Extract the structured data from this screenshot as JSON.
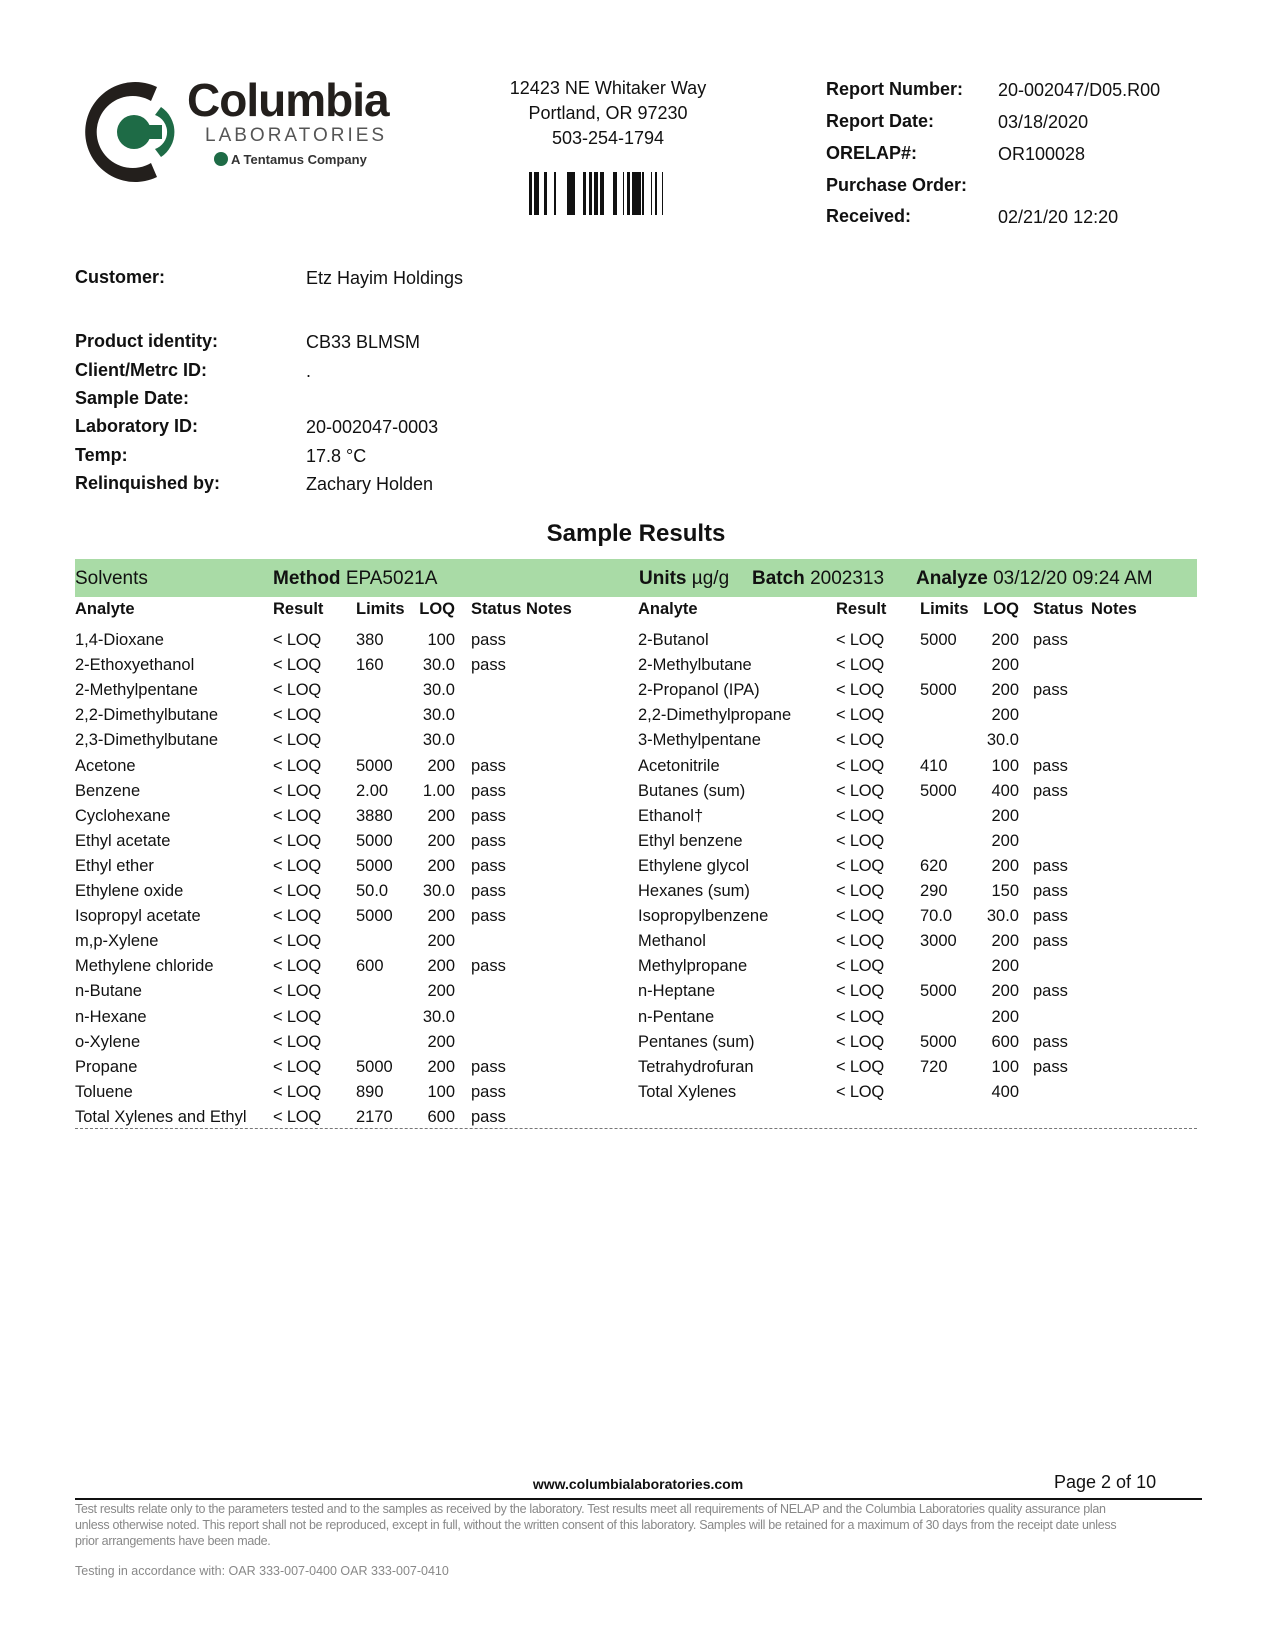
{
  "logo": {
    "name": "Columbia",
    "sub": "LABORATORIES",
    "tagline": "A Tentamus Company",
    "green": "#1e6b46",
    "dark": "#231f1c"
  },
  "address": {
    "line1": "12423 NE Whitaker Way",
    "line2": "Portland, OR 97230",
    "phone": "503-254-1794"
  },
  "report": [
    {
      "label": "Report Number:",
      "value": "20-002047/D05.R00"
    },
    {
      "label": "Report Date:",
      "value": "03/18/2020"
    },
    {
      "label": "ORELAP#:",
      "value": "OR100028"
    },
    {
      "label": "Purchase Order:",
      "value": ""
    },
    {
      "label": "Received:",
      "value": "02/21/20  12:20"
    }
  ],
  "customer": {
    "label": "Customer:",
    "value": "Etz Hayim Holdings"
  },
  "sample": [
    {
      "label": "Product identity:",
      "value": "CB33 BLMSM"
    },
    {
      "label": "Client/Metrc ID:",
      "value": "."
    },
    {
      "label": "Sample Date:",
      "value": ""
    },
    {
      "label": "Laboratory ID:",
      "value": "20-002047-0003"
    },
    {
      "label": "Temp:",
      "value": "17.8 °C"
    },
    {
      "label": "Relinquished by:",
      "value": "Zachary Holden"
    }
  ],
  "results_title": "Sample Results",
  "section": {
    "name": "Solvents",
    "method_label": "Method",
    "method": "EPA5021A",
    "units_label": "Units",
    "units": "µg/g",
    "batch_label": "Batch",
    "batch": "2002313",
    "analyze_label": "Analyze",
    "analyze": "03/12/20  09:24 AM",
    "color": "#a9dba6"
  },
  "columns": [
    "Analyte",
    "Result",
    "Limits",
    "LOQ",
    "Status",
    "Notes"
  ],
  "left_rows": [
    [
      "1,4-Dioxane",
      "< LOQ",
      "380",
      "100",
      "pass"
    ],
    [
      "2-Ethoxyethanol",
      "< LOQ",
      "160",
      "30.0",
      "pass"
    ],
    [
      "2-Methylpentane",
      "< LOQ",
      "",
      "30.0",
      ""
    ],
    [
      "2,2-Dimethylbutane",
      "< LOQ",
      "",
      "30.0",
      ""
    ],
    [
      "2,3-Dimethylbutane",
      "< LOQ",
      "",
      "30.0",
      ""
    ],
    [
      "Acetone",
      "< LOQ",
      "5000",
      "200",
      "pass"
    ],
    [
      "Benzene",
      "< LOQ",
      "2.00",
      "1.00",
      "pass"
    ],
    [
      "Cyclohexane",
      "< LOQ",
      "3880",
      "200",
      "pass"
    ],
    [
      "Ethyl acetate",
      "< LOQ",
      "5000",
      "200",
      "pass"
    ],
    [
      "Ethyl ether",
      "< LOQ",
      "5000",
      "200",
      "pass"
    ],
    [
      "Ethylene oxide",
      "< LOQ",
      "50.0",
      "30.0",
      "pass"
    ],
    [
      "Isopropyl acetate",
      "< LOQ",
      "5000",
      "200",
      "pass"
    ],
    [
      "m,p-Xylene",
      "< LOQ",
      "",
      "200",
      ""
    ],
    [
      "Methylene chloride",
      "< LOQ",
      "600",
      "200",
      "pass"
    ],
    [
      "n-Butane",
      "< LOQ",
      "",
      "200",
      ""
    ],
    [
      "n-Hexane",
      "< LOQ",
      "",
      "30.0",
      ""
    ],
    [
      "o-Xylene",
      "< LOQ",
      "",
      "200",
      ""
    ],
    [
      "Propane",
      "< LOQ",
      "5000",
      "200",
      "pass"
    ],
    [
      "Toluene",
      "< LOQ",
      "890",
      "100",
      "pass"
    ],
    [
      "Total Xylenes and Ethyl",
      "< LOQ",
      "2170",
      "600",
      "pass"
    ]
  ],
  "right_rows": [
    [
      "2-Butanol",
      "< LOQ",
      "5000",
      "200",
      "pass"
    ],
    [
      "2-Methylbutane",
      "< LOQ",
      "",
      "200",
      ""
    ],
    [
      "2-Propanol (IPA)",
      "< LOQ",
      "5000",
      "200",
      "pass"
    ],
    [
      "2,2-Dimethylpropane",
      "< LOQ",
      "",
      "200",
      ""
    ],
    [
      "3-Methylpentane",
      "< LOQ",
      "",
      "30.0",
      ""
    ],
    [
      "Acetonitrile",
      "< LOQ",
      "410",
      "100",
      "pass"
    ],
    [
      "Butanes (sum)",
      "< LOQ",
      "5000",
      "400",
      "pass"
    ],
    [
      "Ethanol†",
      "< LOQ",
      "",
      "200",
      ""
    ],
    [
      "Ethyl benzene",
      "< LOQ",
      "",
      "200",
      ""
    ],
    [
      "Ethylene glycol",
      "< LOQ",
      "620",
      "200",
      "pass"
    ],
    [
      "Hexanes (sum)",
      "< LOQ",
      "290",
      "150",
      "pass"
    ],
    [
      "Isopropylbenzene",
      "< LOQ",
      "70.0",
      "30.0",
      "pass"
    ],
    [
      "Methanol",
      "< LOQ",
      "3000",
      "200",
      "pass"
    ],
    [
      "Methylpropane",
      "< LOQ",
      "",
      "200",
      ""
    ],
    [
      "n-Heptane",
      "< LOQ",
      "5000",
      "200",
      "pass"
    ],
    [
      "n-Pentane",
      "< LOQ",
      "",
      "200",
      ""
    ],
    [
      "Pentanes (sum)",
      "< LOQ",
      "5000",
      "600",
      "pass"
    ],
    [
      "Tetrahydrofuran",
      "< LOQ",
      "720",
      "100",
      "pass"
    ],
    [
      "Total Xylenes",
      "< LOQ",
      "",
      "400",
      ""
    ]
  ],
  "footer": {
    "website": "www.columbialaboratories.com",
    "page": "Page 2 of 10",
    "disclaimer1": "Test results relate only to the parameters tested and to the samples as received by the laboratory. Test results meet all requirements of NELAP and the Columbia Laboratories quality assurance plan",
    "disclaimer2": "unless otherwise noted. This report shall not be reproduced, except in full, without the written consent of this laboratory. Samples will be retained for a maximum of 30 days from the receipt date unless",
    "disclaimer3": "prior arrangements have been made.",
    "testing": "Testing in accordance with:  OAR 333-007-0400 OAR 333-007-0410"
  }
}
